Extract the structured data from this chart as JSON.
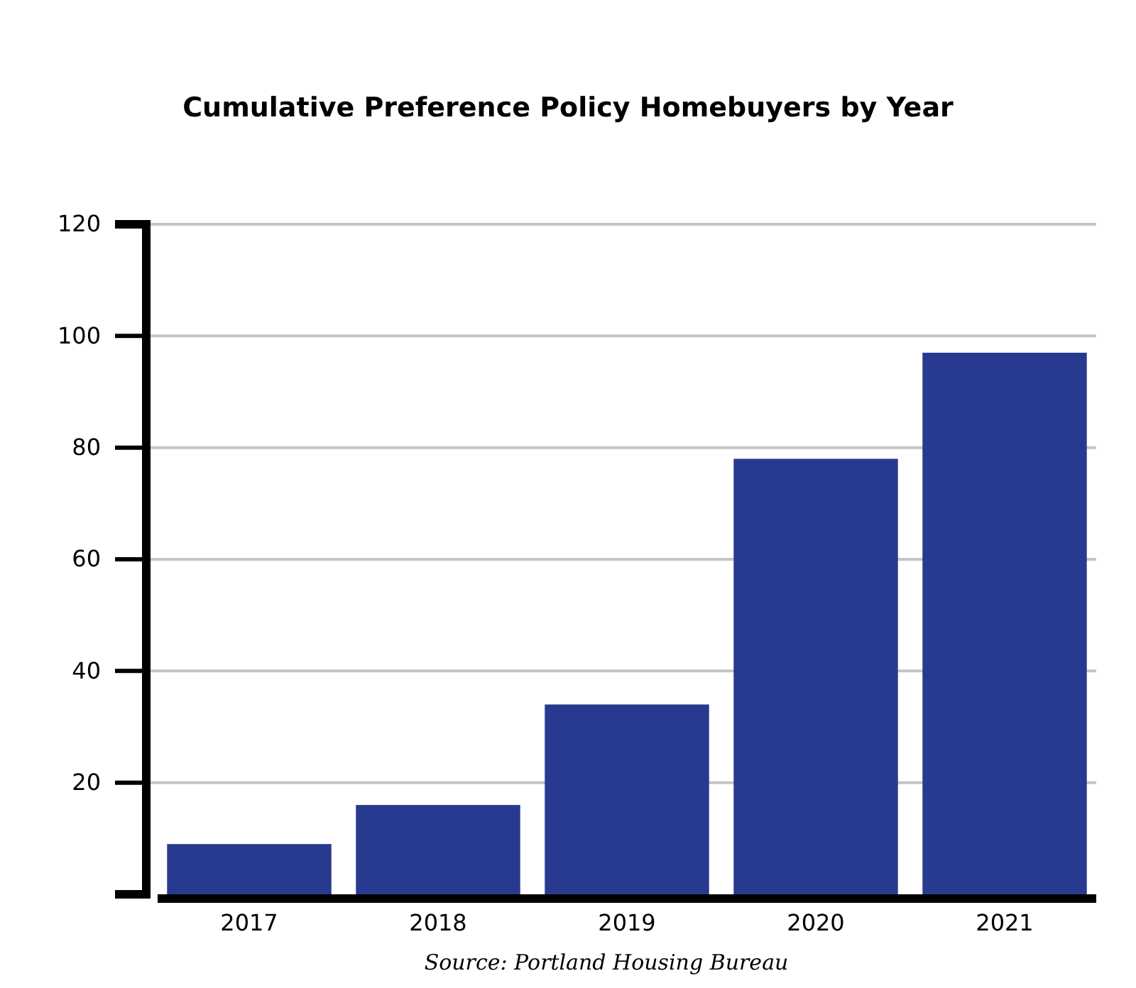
{
  "chart_data": {
    "type": "bar",
    "title": "Cumulative Preference Policy Homebuyers by Year",
    "categories": [
      "2017",
      "2018",
      "2019",
      "2020",
      "2021"
    ],
    "values": [
      9,
      16,
      34,
      78,
      97
    ],
    "color": "#283a8f",
    "ylim": [
      0,
      120
    ],
    "yticks": [
      20,
      40,
      60,
      80,
      100,
      120
    ],
    "grid": "y",
    "annotations": [
      "Source: Portland Housing Bureau"
    ]
  }
}
